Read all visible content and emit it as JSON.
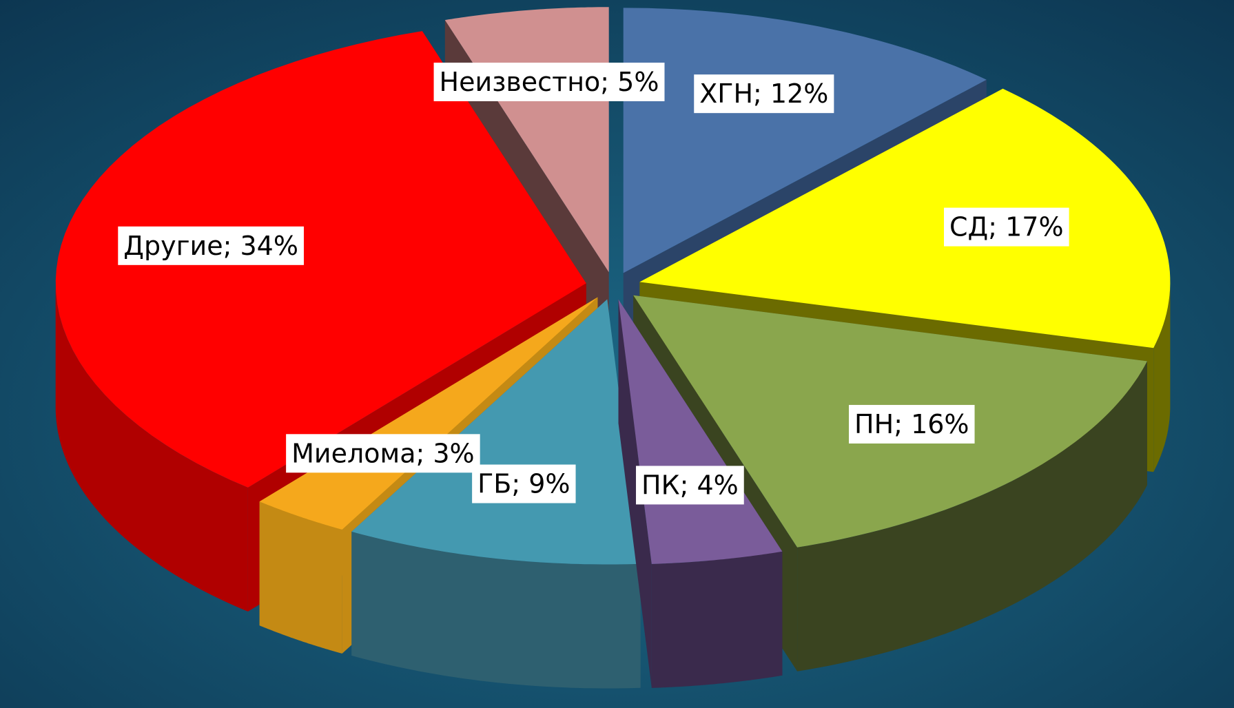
{
  "chart_data": {
    "type": "pie3d",
    "categories": [
      "ХГН",
      "СД",
      "ПН",
      "ПК",
      "ГБ",
      "Миелома",
      "Другие",
      "Неизвестно"
    ],
    "values": [
      12,
      17,
      16,
      4,
      9,
      3,
      34,
      5
    ],
    "value_labels": [
      "ХГН; 12%",
      "СД; 17%",
      "ПН; 16%",
      "ПК; 4%",
      "ГБ; 9%",
      "Миелома; 3%",
      "Другие; 34%",
      "Неизвестно; 5%"
    ],
    "colors": [
      "#4a72a8",
      "#ffff00",
      "#8aa64d",
      "#7a5c9a",
      "#4499b0",
      "#f5a81c",
      "#ff0000",
      "#d09090"
    ],
    "side_colors": [
      "#2b4468",
      "#6b6b00",
      "#3a4420",
      "#3a2a4c",
      "#2e6070",
      "#c48a14",
      "#b00000",
      "#5a3a3a"
    ]
  }
}
